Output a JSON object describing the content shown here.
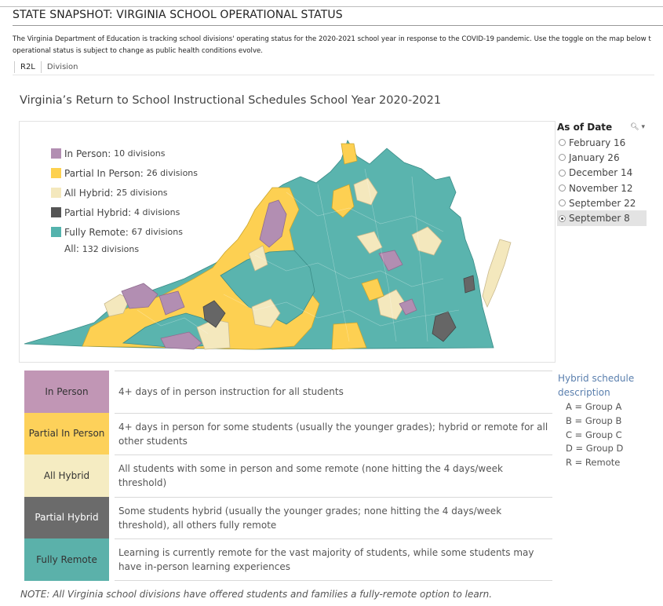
{
  "header": {
    "title": "STATE SNAPSHOT: VIRGINIA SCHOOL OPERATIONAL STATUS",
    "intro_line1": "The Virginia Department of Education is tracking school divisions' operating status  for the 2020-2021 school year in response to the COVID-19 pandemic. Use the toggle on the map below t",
    "intro_line2": "operational status is subject to change as public health conditions evolve."
  },
  "tabs": [
    {
      "label": "R2L"
    },
    {
      "label": "Division"
    }
  ],
  "map": {
    "title": "Virginia’s Return to School Instructional Schedules School Year 2020-2021",
    "legend": [
      {
        "label": "In Person:",
        "count": "10 divisions",
        "color": "#b28eb2"
      },
      {
        "label": "Partial In Person:",
        "count": "26 divisions",
        "color": "#fdd14f"
      },
      {
        "label": "All Hybrid:",
        "count": "25 divisions",
        "color": "#f4e8bd"
      },
      {
        "label": "Partial Hybrid:",
        "count": "4 divisions",
        "color": "#555555"
      },
      {
        "label": "Fully Remote:",
        "count": "67 divisions",
        "color": "#54b3ad"
      }
    ],
    "all_label": "All:",
    "all_count": "132 divisions"
  },
  "date_filter": {
    "title": "As of Date",
    "tools_icon": "search-icon",
    "options": [
      {
        "label": "February 16",
        "selected": false
      },
      {
        "label": "January 26",
        "selected": false
      },
      {
        "label": "December 14",
        "selected": false
      },
      {
        "label": "November 12",
        "selected": false
      },
      {
        "label": "September 22",
        "selected": false
      },
      {
        "label": "September 8",
        "selected": true
      }
    ]
  },
  "definitions": [
    {
      "label": "In Person",
      "desc": "4+ days of in person instruction for all students",
      "bg": "#c196b5",
      "fg": "#333333"
    },
    {
      "label": "Partial In Person",
      "desc": "4+ days in person for some students (usually the younger grades); hybrid or remote for all other students",
      "bg": "#fdd15a",
      "fg": "#333333"
    },
    {
      "label": "All Hybrid",
      "desc": "All students with some in person and some remote (none hitting the 4 days/week threshold)",
      "bg": "#f5ecc2",
      "fg": "#333333"
    },
    {
      "label": "Partial Hybrid",
      "desc": "Some students hybrid (usually the younger grades; none hitting the 4 days/week threshold), all others fully remote",
      "bg": "#6b6b6b",
      "fg": "#ffffff"
    },
    {
      "label": "Fully Remote",
      "desc": "Learning is currently remote for the vast majority of students, while some students may have in-person learning experiences",
      "bg": "#5bb1aa",
      "fg": "#333333"
    }
  ],
  "hybrid_schedule": {
    "title": "Hybrid schedule description",
    "items": [
      "A = Group A",
      "B = Group B",
      "C = Group C",
      "D = Group D",
      "R = Remote"
    ]
  },
  "note": "NOTE: All Virginia school divisions have offered students and families a fully-remote option to learn."
}
